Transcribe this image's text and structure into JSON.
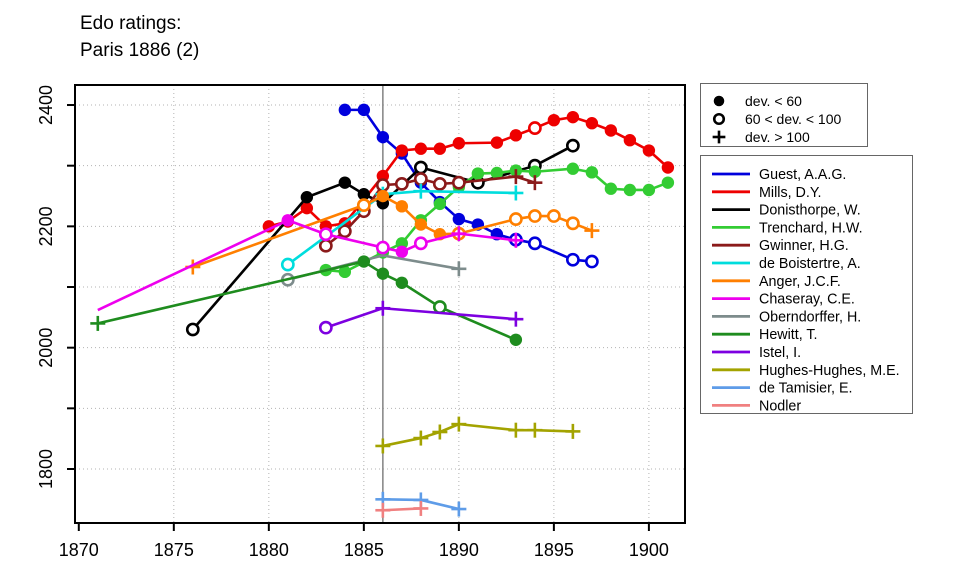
{
  "title": {
    "line1": "Edo ratings:",
    "line2": "Paris 1886 (2)"
  },
  "chart_data": {
    "type": "line",
    "title": "Edo ratings: Paris 1886 (2)",
    "xlabel": "",
    "ylabel": "",
    "xlim": [
      1869.8,
      1901.9
    ],
    "ylim": [
      1711,
      2433
    ],
    "x_ticks": [
      1870,
      1875,
      1880,
      1885,
      1890,
      1895,
      1900
    ],
    "y_tick_labels": [
      1800,
      2000,
      2200,
      2400
    ],
    "y_ticks_minor": [
      1800,
      1900,
      2000,
      2100,
      2200,
      2300,
      2400
    ],
    "x_gridlines": [
      1875,
      1880,
      1885,
      1890,
      1895,
      1900
    ],
    "y_gridlines": [
      1800,
      1900,
      2000,
      2100,
      2200,
      2300,
      2400
    ],
    "grid": true,
    "event_year": 1886,
    "event_line_color": "#8a8a8a",
    "grid_color": "#b3b3b3",
    "frame_color": "#000000",
    "marker_legend": {
      "position": "top-right",
      "items": [
        {
          "marker": "filled",
          "label": "dev. < 60"
        },
        {
          "marker": "open",
          "label": "60 < dev. < 100"
        },
        {
          "marker": "plus",
          "label": "dev. > 100"
        }
      ]
    },
    "series_legend_position": "right",
    "marker_key": {
      "f": "filled circle: dev. < 60",
      "o": "open circle: 60 < dev. < 100",
      "p": "plus: dev. > 100",
      "n": "no visible marker"
    },
    "series": [
      {
        "name": "Guest, A.A.G.",
        "color": "#0000dd",
        "points": [
          [
            1884,
            2392,
            "f"
          ],
          [
            1885,
            2392,
            "f"
          ],
          [
            1886,
            2347,
            "f"
          ],
          [
            1887,
            2320,
            "f"
          ],
          [
            1888,
            2272,
            "f"
          ],
          [
            1889,
            2240,
            "f"
          ],
          [
            1890,
            2212,
            "f"
          ],
          [
            1891,
            2203,
            "f"
          ],
          [
            1892,
            2187,
            "f"
          ],
          [
            1893,
            2178,
            "o"
          ],
          [
            1894,
            2172,
            "o"
          ],
          [
            1896,
            2145,
            "o"
          ],
          [
            1897,
            2142,
            "o"
          ]
        ]
      },
      {
        "name": "Mills, D.Y.",
        "color": "#ee0000",
        "points": [
          [
            1880,
            2200,
            "f"
          ],
          [
            1881,
            2208,
            "f"
          ],
          [
            1882,
            2230,
            "f"
          ],
          [
            1883,
            2200,
            "f"
          ],
          [
            1884,
            2205,
            "f"
          ],
          [
            1886,
            2283,
            "f"
          ],
          [
            1887,
            2325,
            "f"
          ],
          [
            1888,
            2328,
            "f"
          ],
          [
            1889,
            2328,
            "f"
          ],
          [
            1890,
            2337,
            "f"
          ],
          [
            1892,
            2338,
            "f"
          ],
          [
            1893,
            2350,
            "f"
          ],
          [
            1894,
            2362,
            "o"
          ],
          [
            1895,
            2375,
            "f"
          ],
          [
            1896,
            2380,
            "f"
          ],
          [
            1897,
            2370,
            "f"
          ],
          [
            1898,
            2358,
            "f"
          ],
          [
            1899,
            2342,
            "f"
          ],
          [
            1900,
            2325,
            "f"
          ],
          [
            1901,
            2297,
            "f"
          ]
        ]
      },
      {
        "name": "Donisthorpe, W.",
        "color": "#000000",
        "points": [
          [
            1876,
            2030,
            "o"
          ],
          [
            1882,
            2248,
            "f"
          ],
          [
            1884,
            2272,
            "f"
          ],
          [
            1885,
            2253,
            "f"
          ],
          [
            1886,
            2238,
            "f"
          ],
          [
            1888,
            2297,
            "o"
          ],
          [
            1891,
            2272,
            "o"
          ],
          [
            1894,
            2300,
            "o"
          ],
          [
            1896,
            2333,
            "o"
          ]
        ]
      },
      {
        "name": "Trenchard, H.W.",
        "color": "#33cc33",
        "points": [
          [
            1883,
            2128,
            "f"
          ],
          [
            1884,
            2125,
            "f"
          ],
          [
            1886,
            2157,
            "f"
          ],
          [
            1887,
            2172,
            "f"
          ],
          [
            1888,
            2210,
            "f"
          ],
          [
            1889,
            2237,
            "f"
          ],
          [
            1890,
            2265,
            "f"
          ],
          [
            1891,
            2287,
            "f"
          ],
          [
            1892,
            2288,
            "f"
          ],
          [
            1893,
            2292,
            "f"
          ],
          [
            1894,
            2290,
            "f"
          ],
          [
            1896,
            2295,
            "f"
          ],
          [
            1897,
            2289,
            "f"
          ],
          [
            1898,
            2262,
            "f"
          ],
          [
            1899,
            2260,
            "f"
          ],
          [
            1900,
            2260,
            "f"
          ],
          [
            1901,
            2272,
            "f"
          ]
        ]
      },
      {
        "name": "Gwinner, H.G.",
        "color": "#8b1a1a",
        "points": [
          [
            1883,
            2168,
            "o"
          ],
          [
            1884,
            2192,
            "o"
          ],
          [
            1885,
            2225,
            "o"
          ],
          [
            1886,
            2268,
            "o"
          ],
          [
            1887,
            2270,
            "o"
          ],
          [
            1888,
            2278,
            "o"
          ],
          [
            1889,
            2270,
            "o"
          ],
          [
            1890,
            2272,
            "o"
          ],
          [
            1893,
            2282,
            "p"
          ],
          [
            1894,
            2272,
            "p"
          ]
        ]
      },
      {
        "name": "de Boistertre, A.",
        "color": "#00dddd",
        "points": [
          [
            1881,
            2137,
            "o"
          ],
          [
            1886,
            2253,
            "p"
          ],
          [
            1888,
            2258,
            "p"
          ],
          [
            1893,
            2255,
            "p"
          ]
        ]
      },
      {
        "name": "Anger, J.C.F.",
        "color": "#ff7f00",
        "points": [
          [
            1876,
            2133,
            "p"
          ],
          [
            1885,
            2235,
            "o"
          ],
          [
            1886,
            2250,
            "f"
          ],
          [
            1887,
            2233,
            "f"
          ],
          [
            1888,
            2203,
            "f"
          ],
          [
            1889,
            2187,
            "f"
          ],
          [
            1890,
            2188,
            "o"
          ],
          [
            1893,
            2212,
            "o"
          ],
          [
            1894,
            2217,
            "o"
          ],
          [
            1895,
            2217,
            "o"
          ],
          [
            1896,
            2205,
            "o"
          ],
          [
            1897,
            2193,
            "p"
          ]
        ]
      },
      {
        "name": "Chaseray, C.E.",
        "color": "#ee00ee",
        "points": [
          [
            1871,
            2062,
            "n"
          ],
          [
            1881,
            2210,
            "f"
          ],
          [
            1883,
            2187,
            "o"
          ],
          [
            1886,
            2165,
            "o"
          ],
          [
            1887,
            2158,
            "f"
          ],
          [
            1888,
            2172,
            "o"
          ],
          [
            1890,
            2188,
            "p"
          ],
          [
            1893,
            2177,
            "p"
          ]
        ]
      },
      {
        "name": "Oberndorffer, H.",
        "color": "#7d8c8c",
        "points": [
          [
            1881,
            2112,
            "o"
          ],
          [
            1886,
            2152,
            "n"
          ],
          [
            1890,
            2130,
            "p"
          ]
        ]
      },
      {
        "name": "Hewitt, T.",
        "color": "#1e8c1e",
        "points": [
          [
            1871,
            2040,
            "p"
          ],
          [
            1885,
            2142,
            "f"
          ],
          [
            1886,
            2122,
            "f"
          ],
          [
            1887,
            2107,
            "f"
          ],
          [
            1889,
            2067,
            "o"
          ],
          [
            1893,
            2013,
            "f"
          ]
        ]
      },
      {
        "name": "Istel, I.",
        "color": "#7d00e0",
        "points": [
          [
            1883,
            2033,
            "o"
          ],
          [
            1886,
            2065,
            "p"
          ],
          [
            1893,
            2047,
            "p"
          ]
        ]
      },
      {
        "name": "Hughes-Hughes, M.E.",
        "color": "#a3a300",
        "points": [
          [
            1886,
            1838,
            "p"
          ],
          [
            1888,
            1851,
            "p"
          ],
          [
            1889,
            1861,
            "p"
          ],
          [
            1890,
            1874,
            "p"
          ],
          [
            1893,
            1864,
            "p"
          ],
          [
            1894,
            1864,
            "p"
          ],
          [
            1896,
            1862,
            "p"
          ]
        ]
      },
      {
        "name": "de Tamisier, E.",
        "color": "#5e9ce8",
        "points": [
          [
            1886,
            1750,
            "p"
          ],
          [
            1888,
            1749,
            "p"
          ],
          [
            1890,
            1734,
            "p"
          ]
        ]
      },
      {
        "name": "Nodler",
        "color": "#f08080",
        "points": [
          [
            1886,
            1732,
            "p"
          ],
          [
            1888,
            1735,
            "p"
          ]
        ]
      }
    ]
  }
}
